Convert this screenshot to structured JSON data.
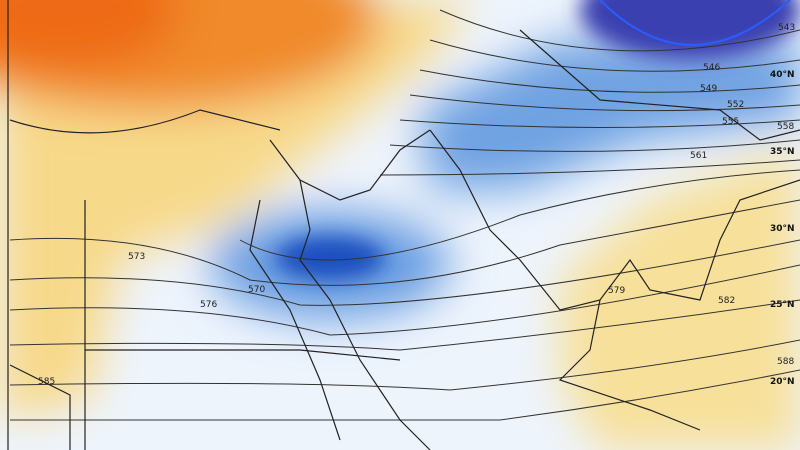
{
  "colors": {
    "warm_orange": "#f07a1e",
    "warm_yellow": "#f7dc8a",
    "pale_blue": "#e6f0fb",
    "mid_blue": "#5b93dc",
    "deep_blue": "#1f4fbf",
    "low_purple": "#4a3fb0"
  },
  "contours": {
    "labels": [
      "543",
      "546",
      "549",
      "552",
      "555",
      "558",
      "561",
      "570",
      "573",
      "576",
      "579",
      "582",
      "585",
      "588"
    ]
  },
  "latitudes": [
    "40°N",
    "35°N",
    "30°N",
    "25°N",
    "20°N"
  ]
}
